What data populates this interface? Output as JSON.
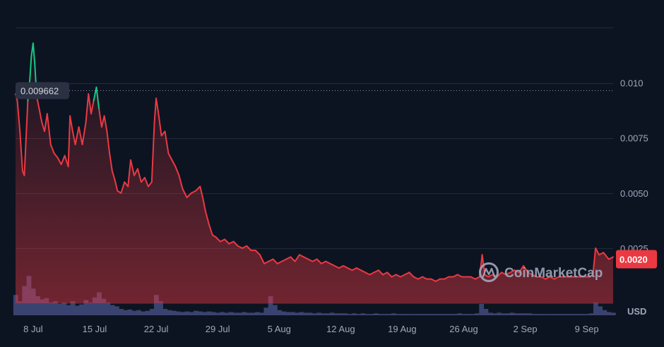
{
  "chart_data": {
    "type": "area",
    "y_ticks": [
      {
        "value": 0.01,
        "label": "0.010"
      },
      {
        "value": 0.0075,
        "label": "0.0075"
      },
      {
        "value": 0.005,
        "label": "0.0050"
      },
      {
        "value": 0.0025,
        "label": "0.0025"
      }
    ],
    "ylim": [
      0,
      0.0128
    ],
    "x_ticks": [
      {
        "day": 8,
        "label": "8 Jul"
      },
      {
        "day": 15,
        "label": "15 Jul"
      },
      {
        "day": 22,
        "label": "22 Jul"
      },
      {
        "day": 29,
        "label": "29 Jul"
      },
      {
        "day": 36,
        "label": "5 Aug"
      },
      {
        "day": 43,
        "label": "12 Aug"
      },
      {
        "day": 50,
        "label": "19 Aug"
      },
      {
        "day": 57,
        "label": "26 Aug"
      },
      {
        "day": 64,
        "label": "2 Sep"
      },
      {
        "day": 71,
        "label": "9 Sep"
      }
    ],
    "reference": {
      "value": 0.009662,
      "label": "0.009662"
    },
    "current": {
      "value": 0.002,
      "label": "0.0020"
    },
    "currency": "USD",
    "brand": "CoinMarketCap",
    "grid": true,
    "colors": {
      "background": "#0d1421",
      "down": "#ea3943",
      "up": "#16c784",
      "volume": "#3a4370",
      "grid": "#222a3a"
    },
    "price_series": [
      [
        6.0,
        0.0095
      ],
      [
        6.2,
        0.0092
      ],
      [
        6.5,
        0.0078
      ],
      [
        6.8,
        0.006
      ],
      [
        7.0,
        0.0058
      ],
      [
        7.2,
        0.0075
      ],
      [
        7.4,
        0.0092
      ],
      [
        7.6,
        0.01
      ],
      [
        7.8,
        0.0112
      ],
      [
        8.0,
        0.0118
      ],
      [
        8.2,
        0.0108
      ],
      [
        8.4,
        0.0094
      ],
      [
        8.7,
        0.0088
      ],
      [
        9.0,
        0.0082
      ],
      [
        9.3,
        0.0078
      ],
      [
        9.6,
        0.0086
      ],
      [
        10.0,
        0.0072
      ],
      [
        10.4,
        0.0068
      ],
      [
        10.8,
        0.0066
      ],
      [
        11.2,
        0.0063
      ],
      [
        11.6,
        0.0067
      ],
      [
        12.0,
        0.0062
      ],
      [
        12.2,
        0.0085
      ],
      [
        12.5,
        0.0078
      ],
      [
        12.8,
        0.0072
      ],
      [
        13.2,
        0.008
      ],
      [
        13.6,
        0.0072
      ],
      [
        14.0,
        0.0082
      ],
      [
        14.3,
        0.0095
      ],
      [
        14.6,
        0.0086
      ],
      [
        14.9,
        0.0092
      ],
      [
        15.2,
        0.0098
      ],
      [
        15.5,
        0.0088
      ],
      [
        15.8,
        0.008
      ],
      [
        16.1,
        0.0085
      ],
      [
        16.4,
        0.0078
      ],
      [
        16.7,
        0.0068
      ],
      [
        17.0,
        0.006
      ],
      [
        17.3,
        0.0056
      ],
      [
        17.6,
        0.0051
      ],
      [
        18.0,
        0.005
      ],
      [
        18.4,
        0.0055
      ],
      [
        18.8,
        0.0053
      ],
      [
        19.1,
        0.0065
      ],
      [
        19.5,
        0.0058
      ],
      [
        19.9,
        0.0061
      ],
      [
        20.3,
        0.0055
      ],
      [
        20.7,
        0.0057
      ],
      [
        21.1,
        0.0053
      ],
      [
        21.5,
        0.0055
      ],
      [
        21.8,
        0.0082
      ],
      [
        22.0,
        0.0093
      ],
      [
        22.3,
        0.0085
      ],
      [
        22.6,
        0.0076
      ],
      [
        23.0,
        0.0078
      ],
      [
        23.4,
        0.0068
      ],
      [
        23.8,
        0.0065
      ],
      [
        24.2,
        0.0062
      ],
      [
        24.6,
        0.0058
      ],
      [
        25.0,
        0.0052
      ],
      [
        25.5,
        0.0048
      ],
      [
        26.0,
        0.005
      ],
      [
        26.5,
        0.0051
      ],
      [
        27.0,
        0.0053
      ],
      [
        27.3,
        0.0048
      ],
      [
        27.6,
        0.0042
      ],
      [
        28.0,
        0.0036
      ],
      [
        28.4,
        0.0031
      ],
      [
        28.8,
        0.003
      ],
      [
        29.3,
        0.0028
      ],
      [
        29.8,
        0.0029
      ],
      [
        30.3,
        0.0027
      ],
      [
        30.8,
        0.0028
      ],
      [
        31.3,
        0.0026
      ],
      [
        31.8,
        0.0025
      ],
      [
        32.3,
        0.0026
      ],
      [
        32.8,
        0.0024
      ],
      [
        33.3,
        0.0024
      ],
      [
        33.8,
        0.0022
      ],
      [
        34.3,
        0.0018
      ],
      [
        34.8,
        0.0019
      ],
      [
        35.3,
        0.002
      ],
      [
        35.8,
        0.0018
      ],
      [
        36.3,
        0.0019
      ],
      [
        36.8,
        0.002
      ],
      [
        37.3,
        0.0021
      ],
      [
        37.8,
        0.0019
      ],
      [
        38.3,
        0.0022
      ],
      [
        38.8,
        0.0021
      ],
      [
        39.3,
        0.002
      ],
      [
        39.8,
        0.0019
      ],
      [
        40.3,
        0.002
      ],
      [
        40.8,
        0.0018
      ],
      [
        41.3,
        0.0019
      ],
      [
        41.8,
        0.0018
      ],
      [
        42.3,
        0.0017
      ],
      [
        42.8,
        0.0016
      ],
      [
        43.3,
        0.0017
      ],
      [
        43.8,
        0.0016
      ],
      [
        44.3,
        0.0015
      ],
      [
        44.8,
        0.0016
      ],
      [
        45.3,
        0.0015
      ],
      [
        45.8,
        0.0014
      ],
      [
        46.3,
        0.0013
      ],
      [
        46.8,
        0.0014
      ],
      [
        47.3,
        0.0015
      ],
      [
        47.8,
        0.0013
      ],
      [
        48.3,
        0.0014
      ],
      [
        48.8,
        0.0012
      ],
      [
        49.3,
        0.0013
      ],
      [
        49.8,
        0.0012
      ],
      [
        50.3,
        0.0013
      ],
      [
        50.8,
        0.0014
      ],
      [
        51.3,
        0.0012
      ],
      [
        51.8,
        0.0011
      ],
      [
        52.3,
        0.0012
      ],
      [
        52.8,
        0.0011
      ],
      [
        53.3,
        0.0011
      ],
      [
        53.8,
        0.001
      ],
      [
        54.3,
        0.0011
      ],
      [
        54.8,
        0.0011
      ],
      [
        55.3,
        0.0012
      ],
      [
        55.8,
        0.0012
      ],
      [
        56.3,
        0.0013
      ],
      [
        56.8,
        0.0012
      ],
      [
        57.3,
        0.0012
      ],
      [
        57.8,
        0.0012
      ],
      [
        58.3,
        0.0011
      ],
      [
        58.8,
        0.0012
      ],
      [
        59.1,
        0.0022
      ],
      [
        59.4,
        0.0013
      ],
      [
        59.8,
        0.0012
      ],
      [
        60.3,
        0.0013
      ],
      [
        60.8,
        0.0012
      ],
      [
        61.3,
        0.0014
      ],
      [
        61.8,
        0.0013
      ],
      [
        62.3,
        0.0014
      ],
      [
        62.8,
        0.0015
      ],
      [
        63.3,
        0.0014
      ],
      [
        63.8,
        0.0017
      ],
      [
        64.3,
        0.0014
      ],
      [
        64.8,
        0.0013
      ],
      [
        65.3,
        0.0012
      ],
      [
        65.8,
        0.0012
      ],
      [
        66.3,
        0.0011
      ],
      [
        66.8,
        0.0012
      ],
      [
        67.3,
        0.0011
      ],
      [
        67.8,
        0.0012
      ],
      [
        68.3,
        0.0012
      ],
      [
        68.8,
        0.0012
      ],
      [
        69.3,
        0.0012
      ],
      [
        69.8,
        0.0012
      ],
      [
        70.3,
        0.0012
      ],
      [
        70.8,
        0.0012
      ],
      [
        71.3,
        0.0012
      ],
      [
        71.7,
        0.0013
      ],
      [
        72.0,
        0.0025
      ],
      [
        72.4,
        0.0022
      ],
      [
        72.9,
        0.0023
      ],
      [
        73.5,
        0.002
      ],
      [
        74.0,
        0.0021
      ]
    ],
    "volume_series": [
      [
        6.0,
        0.32
      ],
      [
        6.5,
        0.22
      ],
      [
        7.0,
        0.46
      ],
      [
        7.5,
        0.62
      ],
      [
        8.0,
        0.42
      ],
      [
        8.5,
        0.3
      ],
      [
        9.0,
        0.25
      ],
      [
        9.5,
        0.27
      ],
      [
        10.0,
        0.2
      ],
      [
        10.5,
        0.22
      ],
      [
        11.0,
        0.18
      ],
      [
        11.5,
        0.2
      ],
      [
        12.0,
        0.16
      ],
      [
        12.5,
        0.22
      ],
      [
        13.0,
        0.15
      ],
      [
        13.5,
        0.17
      ],
      [
        14.0,
        0.24
      ],
      [
        14.5,
        0.2
      ],
      [
        15.0,
        0.28
      ],
      [
        15.5,
        0.36
      ],
      [
        16.0,
        0.26
      ],
      [
        16.5,
        0.2
      ],
      [
        17.0,
        0.16
      ],
      [
        17.5,
        0.14
      ],
      [
        18.0,
        0.1
      ],
      [
        18.5,
        0.08
      ],
      [
        19.0,
        0.09
      ],
      [
        19.5,
        0.07
      ],
      [
        20.0,
        0.08
      ],
      [
        20.5,
        0.06
      ],
      [
        21.0,
        0.07
      ],
      [
        21.5,
        0.1
      ],
      [
        22.0,
        0.32
      ],
      [
        22.5,
        0.22
      ],
      [
        23.0,
        0.1
      ],
      [
        23.5,
        0.08
      ],
      [
        24.0,
        0.07
      ],
      [
        24.5,
        0.06
      ],
      [
        25.0,
        0.05
      ],
      [
        25.5,
        0.06
      ],
      [
        26.0,
        0.05
      ],
      [
        26.5,
        0.07
      ],
      [
        27.0,
        0.06
      ],
      [
        27.5,
        0.05
      ],
      [
        28.0,
        0.06
      ],
      [
        28.5,
        0.05
      ],
      [
        29.0,
        0.04
      ],
      [
        29.5,
        0.05
      ],
      [
        30.0,
        0.04
      ],
      [
        30.5,
        0.05
      ],
      [
        31.0,
        0.04
      ],
      [
        31.5,
        0.04
      ],
      [
        32.0,
        0.05
      ],
      [
        32.5,
        0.04
      ],
      [
        33.0,
        0.04
      ],
      [
        33.5,
        0.05
      ],
      [
        34.0,
        0.04
      ],
      [
        34.5,
        0.12
      ],
      [
        35.0,
        0.3
      ],
      [
        35.5,
        0.16
      ],
      [
        36.0,
        0.08
      ],
      [
        36.5,
        0.06
      ],
      [
        37.0,
        0.05
      ],
      [
        37.5,
        0.05
      ],
      [
        38.0,
        0.04
      ],
      [
        38.5,
        0.05
      ],
      [
        39.0,
        0.04
      ],
      [
        39.5,
        0.04
      ],
      [
        40.0,
        0.03
      ],
      [
        40.5,
        0.04
      ],
      [
        41.0,
        0.03
      ],
      [
        41.5,
        0.03
      ],
      [
        42.0,
        0.04
      ],
      [
        42.5,
        0.03
      ],
      [
        43.0,
        0.03
      ],
      [
        43.5,
        0.03
      ],
      [
        44.0,
        0.02
      ],
      [
        44.5,
        0.03
      ],
      [
        45.0,
        0.02
      ],
      [
        45.5,
        0.03
      ],
      [
        46.0,
        0.02
      ],
      [
        46.5,
        0.02
      ],
      [
        47.0,
        0.03
      ],
      [
        47.5,
        0.02
      ],
      [
        48.0,
        0.02
      ],
      [
        48.5,
        0.02
      ],
      [
        49.0,
        0.03
      ],
      [
        49.5,
        0.02
      ],
      [
        50.0,
        0.02
      ],
      [
        50.5,
        0.02
      ],
      [
        51.0,
        0.02
      ],
      [
        51.5,
        0.02
      ],
      [
        52.0,
        0.02
      ],
      [
        52.5,
        0.02
      ],
      [
        53.0,
        0.02
      ],
      [
        53.5,
        0.02
      ],
      [
        54.0,
        0.02
      ],
      [
        54.5,
        0.02
      ],
      [
        55.0,
        0.02
      ],
      [
        55.5,
        0.02
      ],
      [
        56.0,
        0.02
      ],
      [
        56.5,
        0.03
      ],
      [
        57.0,
        0.02
      ],
      [
        57.5,
        0.02
      ],
      [
        58.0,
        0.02
      ],
      [
        58.5,
        0.03
      ],
      [
        59.0,
        0.18
      ],
      [
        59.5,
        0.1
      ],
      [
        60.0,
        0.04
      ],
      [
        60.5,
        0.03
      ],
      [
        61.0,
        0.04
      ],
      [
        61.5,
        0.03
      ],
      [
        62.0,
        0.03
      ],
      [
        62.5,
        0.04
      ],
      [
        63.0,
        0.03
      ],
      [
        63.5,
        0.03
      ],
      [
        64.0,
        0.03
      ],
      [
        64.5,
        0.03
      ],
      [
        65.0,
        0.02
      ],
      [
        65.5,
        0.02
      ],
      [
        66.0,
        0.02
      ],
      [
        66.5,
        0.02
      ],
      [
        67.0,
        0.02
      ],
      [
        67.5,
        0.02
      ],
      [
        68.0,
        0.02
      ],
      [
        68.5,
        0.02
      ],
      [
        69.0,
        0.02
      ],
      [
        69.5,
        0.02
      ],
      [
        70.0,
        0.02
      ],
      [
        70.5,
        0.02
      ],
      [
        71.0,
        0.02
      ],
      [
        71.5,
        0.03
      ],
      [
        72.0,
        0.2
      ],
      [
        72.5,
        0.14
      ],
      [
        73.0,
        0.08
      ],
      [
        73.5,
        0.05
      ],
      [
        74.0,
        0.04
      ]
    ]
  }
}
